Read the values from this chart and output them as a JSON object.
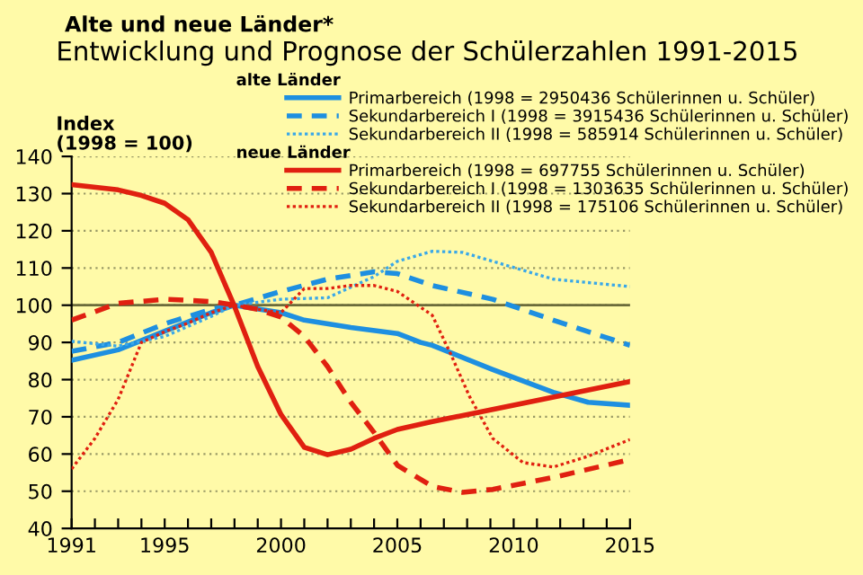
{
  "chart_data": {
    "type": "line",
    "title": "Alte und neue Länder*",
    "subtitle": "Entwicklung und Prognose der Schülerzahlen 1991-2015",
    "ylabel": "Index\n(1998 = 100)",
    "annotations": [
      "alte Länder",
      "neue Länder"
    ],
    "xlim": [
      1991,
      2015
    ],
    "ylim": [
      40,
      140
    ],
    "xticks": [
      {
        "value": 1991,
        "label": "1991"
      },
      {
        "value": 1992,
        "label": null
      },
      {
        "value": 1993,
        "label": null
      },
      {
        "value": 1994,
        "label": null
      },
      {
        "value": 1995,
        "label": "1995"
      },
      {
        "value": 1996,
        "label": null
      },
      {
        "value": 1997,
        "label": null
      },
      {
        "value": 1998,
        "label": null
      },
      {
        "value": 1999,
        "label": null
      },
      {
        "value": 2000,
        "label": "2000"
      },
      {
        "value": 2001,
        "label": null
      },
      {
        "value": 2002,
        "label": null
      },
      {
        "value": 2003,
        "label": null
      },
      {
        "value": 2004,
        "label": null
      },
      {
        "value": 2005,
        "label": "2005"
      },
      {
        "value": 2006,
        "label": null
      },
      {
        "value": 2007,
        "label": null
      },
      {
        "value": 2008,
        "label": null
      },
      {
        "value": 2009,
        "label": null
      },
      {
        "value": 2010,
        "label": "2010"
      },
      {
        "value": 2011,
        "label": null
      },
      {
        "value": 2012,
        "label": null
      },
      {
        "value": 2013,
        "label": null
      },
      {
        "value": 2014,
        "label": null
      },
      {
        "value": 2015,
        "label": "2015"
      }
    ],
    "yticks": [
      40,
      50,
      60,
      70,
      80,
      90,
      100,
      110,
      120,
      130,
      140
    ],
    "grid": "y",
    "legend": "top right",
    "marker": "none",
    "ref_lines": [
      {
        "axis": "y",
        "value": 100,
        "label": null,
        "color": "#6b6b3a",
        "line_style": "solid"
      }
    ],
    "series": [
      {
        "name": "Primarbereich (1998 = 2950436 Schülerinnen u. Schüler)",
        "color": "#1e8fe0",
        "line_style": "solid",
        "x": [
          1991,
          1993,
          1995,
          1997,
          1998,
          2000,
          2001,
          2003,
          2005,
          2006,
          2006.5,
          2009.1,
          2011.7,
          2013.2,
          2015
        ],
        "values": [
          85.2,
          88,
          93,
          98,
          100,
          98,
          96,
          94,
          92.4,
          90,
          89.2,
          82.7,
          76.6,
          73.9,
          73.1
        ]
      },
      {
        "name": "Sekundarbereich I (1998 = 3915436 Schülerinnen u. Schüler)",
        "color": "#1e8fe0",
        "line_style": "dashed",
        "x": [
          1991,
          1993,
          1995,
          1997,
          1998,
          2000,
          2002,
          2004,
          2005,
          2006.5,
          2009.1,
          2011.7,
          2015
        ],
        "values": [
          87.6,
          90,
          95,
          98.9,
          100,
          103.7,
          107,
          109,
          108.5,
          105.3,
          101.6,
          96,
          89.2
        ]
      },
      {
        "name": "Sekundarbereich II (1998 = 585914 Schülerinnen u. Schüler)",
        "color": "#3aa8e8",
        "line_style": "dotted",
        "x": [
          1991,
          1993,
          1995,
          1997,
          1998,
          2000,
          2002,
          2004,
          2005,
          2006.5,
          2007.8,
          2009.1,
          2011.7,
          2015
        ],
        "values": [
          90.3,
          89,
          91.6,
          97,
          100,
          101.6,
          102,
          107.7,
          111.8,
          114.5,
          114.2,
          111.8,
          107,
          105
        ]
      },
      {
        "name": "Primarbereich (1998 = 697755 Schülerinnen u. Schüler)",
        "color": "#e02010",
        "line_style": "solid",
        "x": [
          1991,
          1993,
          1994,
          1995,
          1996,
          1997,
          1998,
          1999,
          2000,
          2001,
          2002,
          2003,
          2004,
          2005,
          2006.5,
          2015
        ],
        "values": [
          132.4,
          131,
          129.5,
          127.4,
          123,
          114.2,
          99.7,
          83.5,
          70.6,
          61.8,
          59.8,
          61.3,
          64.2,
          66.6,
          68.7,
          79.5
        ]
      },
      {
        "name": "Sekundarbereich I (1998 = 1303635 Schülerinnen u. Schüler)",
        "color": "#e02010",
        "line_style": "dashed",
        "x": [
          1991,
          1993,
          1995,
          1997,
          1998,
          1999,
          2000,
          2001,
          2002,
          2003,
          2004,
          2005,
          2006.5,
          2007.8,
          2009.1,
          2011.7,
          2015
        ],
        "values": [
          96,
          100.5,
          101.6,
          101,
          100,
          98.9,
          96.8,
          91.6,
          83.5,
          73.9,
          65.8,
          57,
          51.3,
          49.7,
          50.5,
          53.7,
          58.5
        ]
      },
      {
        "name": "Sekundarbereich II (1998 = 175106 Schülerinnen u. Schüler)",
        "color": "#e02010",
        "line_style": "dotted",
        "x": [
          1991,
          1992,
          1993,
          1994,
          1995,
          1996,
          1997,
          1998,
          1999,
          2000,
          2001,
          2002,
          2003,
          2004,
          2005,
          2006.5,
          2007.3,
          2008.1,
          2009.1,
          2010.4,
          2011.7,
          2013.2,
          2015
        ],
        "values": [
          56,
          64.2,
          74.7,
          90,
          92.9,
          95.2,
          98,
          100,
          98.9,
          98,
          104.5,
          104.5,
          105.3,
          105.3,
          103.7,
          97.3,
          86.8,
          75.5,
          64.2,
          57.7,
          56.5,
          59.4,
          63.9
        ]
      }
    ]
  }
}
